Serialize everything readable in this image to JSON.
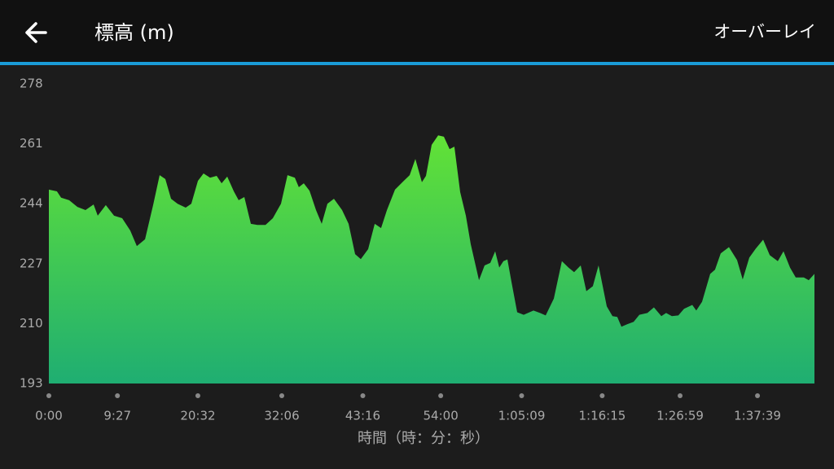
{
  "header": {
    "title": "標高 (m)",
    "action": "オーバーレイ"
  },
  "chart_data": {
    "type": "area",
    "xlabel": "時間（時：分：秒）",
    "x": [
      0,
      67,
      101,
      168,
      236,
      303,
      370,
      404,
      471,
      539,
      606,
      673,
      727,
      795,
      862,
      916,
      963,
      1010,
      1064,
      1131,
      1178,
      1232,
      1279,
      1333,
      1387,
      1428,
      1475,
      1529,
      1569,
      1616,
      1670,
      1724,
      1791,
      1852,
      1919,
      1973,
      2034,
      2067,
      2108,
      2155,
      2209,
      2256,
      2303,
      2357,
      2424,
      2478,
      2532,
      2579,
      2640,
      2694,
      2747,
      2795,
      2862,
      2929,
      2983,
      3030,
      3084,
      3118,
      3165,
      3219,
      3266,
      3313,
      3353,
      3401,
      3448,
      3488,
      3556,
      3603,
      3650,
      3690,
      3724,
      3758,
      3791,
      3825,
      3872,
      3926,
      4007,
      4061,
      4108,
      4175,
      4242,
      4296,
      4343,
      4397,
      4444,
      4498,
      4545,
      4613,
      4660,
      4700,
      4734,
      4781,
      4835,
      4882,
      4949,
      5003,
      5064,
      5104,
      5151,
      5205,
      5252,
      5320,
      5353,
      5401,
      5468,
      5508,
      5555,
      5623,
      5690,
      5737,
      5791,
      5845,
      5906,
      5960,
      6027,
      6074,
      6128,
      6175,
      6242,
      6283,
      6330
    ],
    "values": [
      248,
      247.5,
      245.7,
      245,
      243.1,
      242.2,
      243.8,
      240.6,
      243.6,
      240.6,
      239.9,
      236.4,
      232,
      233.9,
      243.6,
      252.1,
      251,
      245.4,
      244,
      242.9,
      244,
      250.5,
      252.6,
      251.4,
      251.9,
      249.8,
      251.7,
      247.5,
      245,
      245.9,
      238.3,
      238,
      238,
      239.9,
      244,
      252.1,
      251.4,
      248.7,
      249.8,
      247.7,
      242.2,
      238.3,
      244,
      245.4,
      242.2,
      238.3,
      229.7,
      228.3,
      231.1,
      238.3,
      237.1,
      242.2,
      248,
      250.3,
      252.1,
      256.7,
      250.1,
      251.9,
      260.7,
      263.4,
      263,
      259.5,
      260.2,
      247.3,
      240.6,
      232.5,
      222.3,
      226.5,
      227.2,
      230.5,
      225.9,
      227.7,
      228.2,
      221.8,
      213.2,
      212.5,
      213.7,
      213,
      212.3,
      217.1,
      227.7,
      225.9,
      224.6,
      226.5,
      219.2,
      220.6,
      226.5,
      214.9,
      212.1,
      211.9,
      209.1,
      209.8,
      210.5,
      212.5,
      213,
      214.6,
      212.1,
      213,
      212.1,
      212.3,
      214.2,
      215.3,
      213.7,
      216.2,
      224.1,
      225.3,
      229.9,
      231.7,
      228,
      222.5,
      228.7,
      231.3,
      233.8,
      229.4,
      227.7,
      230.5,
      225.9,
      223.1,
      223.1,
      222.3,
      224.1
    ],
    "color_top": "#62e236",
    "color_bottom": "#1fae72",
    "xlim": [
      0,
      6330
    ],
    "xticks": [
      {
        "value": 0,
        "label": "0:00"
      },
      {
        "value": 567,
        "label": "9:27"
      },
      {
        "value": 1232,
        "label": "20:32"
      },
      {
        "value": 1926,
        "label": "32:06"
      },
      {
        "value": 2596,
        "label": "43:16"
      },
      {
        "value": 3240,
        "label": "54:00"
      },
      {
        "value": 3909,
        "label": "1:05:09"
      },
      {
        "value": 4575,
        "label": "1:16:15"
      },
      {
        "value": 5219,
        "label": "1:26:59"
      },
      {
        "value": 5859,
        "label": "1:37:39"
      }
    ],
    "ylim": [
      193,
      278
    ],
    "yticks": [
      193,
      210,
      227,
      244,
      261,
      278
    ]
  }
}
